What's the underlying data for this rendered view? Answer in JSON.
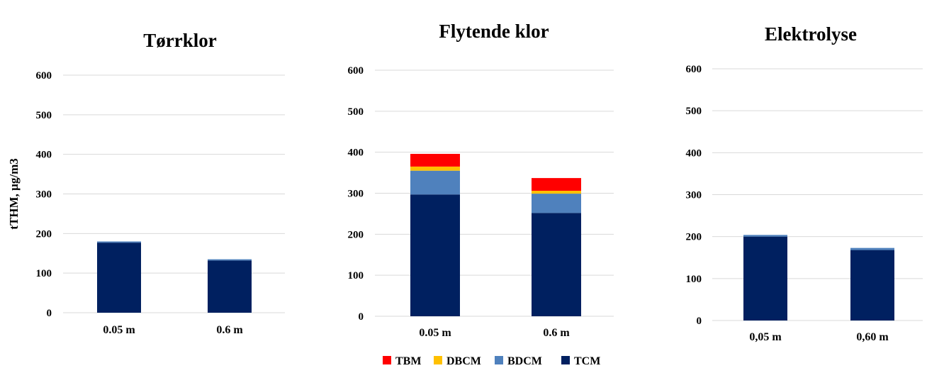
{
  "chart_data": [
    {
      "type": "bar",
      "stacked": true,
      "title": "Tørrklor",
      "ylabel": "tTHM, µg/m3",
      "ylim": [
        0,
        600
      ],
      "yticks": [
        0,
        100,
        200,
        300,
        400,
        500,
        600
      ],
      "grid": true,
      "categories": [
        "0.05 m",
        "0.6 m"
      ],
      "series": [
        {
          "key": "TCM",
          "values": [
            177,
            132
          ]
        },
        {
          "key": "BDCM",
          "values": [
            3,
            3
          ]
        },
        {
          "key": "DBCM",
          "values": [
            0,
            0
          ]
        },
        {
          "key": "TBM",
          "values": [
            0,
            0
          ]
        }
      ]
    },
    {
      "type": "bar",
      "stacked": true,
      "title": "Flytende klor",
      "ylabel": "",
      "ylim": [
        0,
        600
      ],
      "yticks": [
        0,
        100,
        200,
        300,
        400,
        500,
        600
      ],
      "grid": true,
      "categories": [
        "0.05 m",
        "0.6 m"
      ],
      "series": [
        {
          "key": "TCM",
          "values": [
            297,
            252
          ]
        },
        {
          "key": "BDCM",
          "values": [
            58,
            47
          ]
        },
        {
          "key": "DBCM",
          "values": [
            10,
            7
          ]
        },
        {
          "key": "TBM",
          "values": [
            31,
            31
          ]
        }
      ],
      "legend": {
        "position": "bottom",
        "entries": [
          {
            "label": "TBM",
            "color": "#ff0000"
          },
          {
            "label": "DBCM",
            "color": "#ffc000"
          },
          {
            "label": "BDCM",
            "color": "#4f81bd"
          },
          {
            "label": "TCM",
            "color": "#002060"
          }
        ]
      }
    },
    {
      "type": "bar",
      "stacked": true,
      "title": "Elektrolyse",
      "ylabel": "",
      "ylim": [
        0,
        600
      ],
      "yticks": [
        0,
        100,
        200,
        300,
        400,
        500,
        600
      ],
      "grid": true,
      "categories": [
        "0,05 m",
        "0,60 m"
      ],
      "series": [
        {
          "key": "TCM",
          "values": [
            200,
            168
          ]
        },
        {
          "key": "BDCM",
          "values": [
            4,
            5
          ]
        },
        {
          "key": "DBCM",
          "values": [
            0,
            0
          ]
        },
        {
          "key": "TBM",
          "values": [
            0,
            0
          ]
        }
      ]
    }
  ],
  "colors": {
    "TCM": "#002060",
    "BDCM": "#4f81bd",
    "DBCM": "#ffc000",
    "TBM": "#ff0000"
  }
}
